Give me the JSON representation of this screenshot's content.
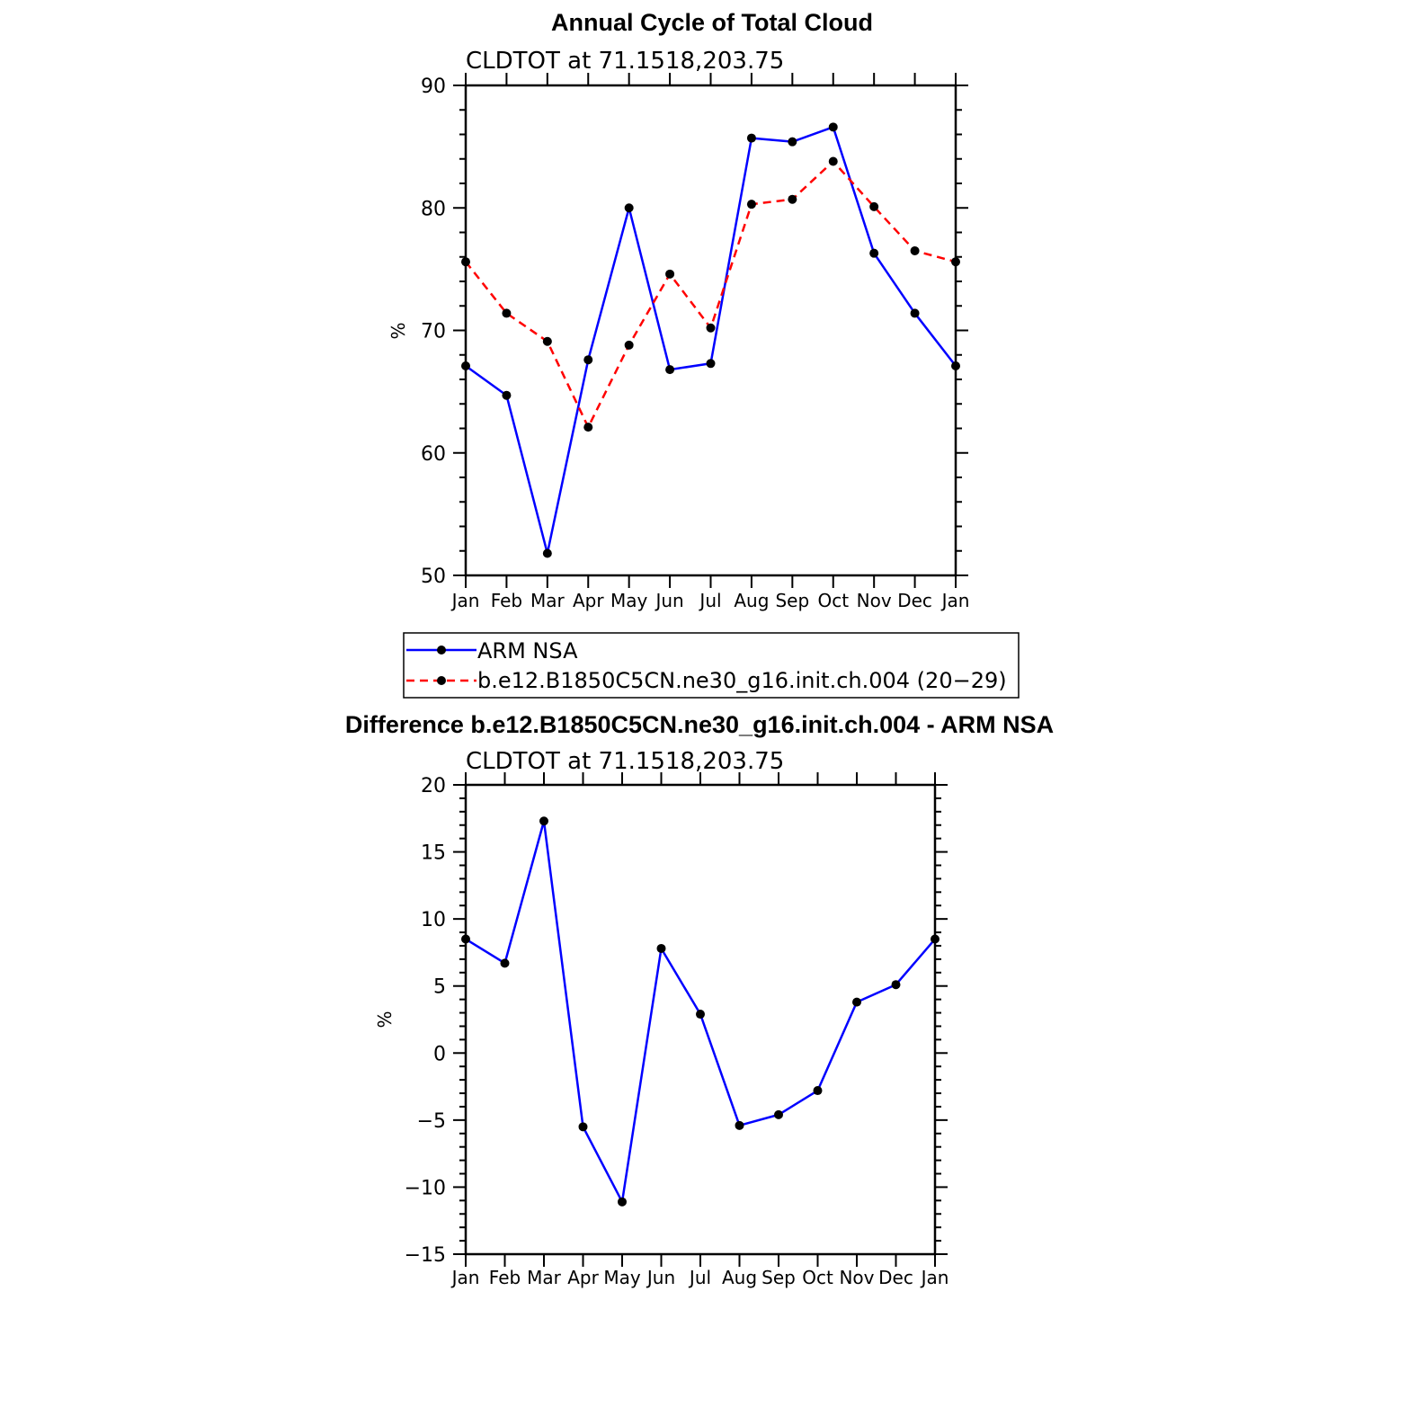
{
  "chart_data": [
    {
      "type": "line",
      "title": "Annual Cycle of Total Cloud",
      "subtitle": "CLDTOT at 71.1518,203.75",
      "ylabel": "%",
      "xlabel": "",
      "ylim": [
        50,
        90
      ],
      "yticks": [
        "50",
        "60",
        "70",
        "80",
        "90"
      ],
      "categories": [
        "Jan",
        "Feb",
        "Mar",
        "Apr",
        "May",
        "Jun",
        "Jul",
        "Aug",
        "Sep",
        "Oct",
        "Nov",
        "Dec",
        "Jan"
      ],
      "grid": false,
      "legend": "below",
      "series": [
        {
          "name": "ARM NSA",
          "color": "#0000ff",
          "dash": "solid",
          "values": [
            67.1,
            64.7,
            51.8,
            67.6,
            80.0,
            66.8,
            67.3,
            85.7,
            85.4,
            86.6,
            76.3,
            71.4,
            67.1
          ]
        },
        {
          "name": "b.e12.B1850C5CN.ne30_g16.init.ch.004 (20−29)",
          "color": "#ff0000",
          "dash": "dashed",
          "values": [
            75.6,
            71.4,
            69.1,
            62.1,
            68.8,
            74.6,
            70.2,
            80.3,
            80.7,
            83.8,
            80.1,
            76.5,
            75.6
          ]
        }
      ]
    },
    {
      "type": "line",
      "title": "Difference b.e12.B1850C5CN.ne30_g16.init.ch.004 - ARM NSA",
      "subtitle": "CLDTOT at 71.1518,203.75",
      "ylabel": "%",
      "xlabel": "",
      "ylim": [
        -15,
        20
      ],
      "yticks": [
        "−15",
        "−10",
        "−5",
        "0",
        "5",
        "10",
        "15",
        "20"
      ],
      "categories": [
        "Jan",
        "Feb",
        "Mar",
        "Apr",
        "May",
        "Jun",
        "Jul",
        "Aug",
        "Sep",
        "Oct",
        "Nov",
        "Dec",
        "Jan"
      ],
      "grid": false,
      "series": [
        {
          "color": "#0000ff",
          "dash": "solid",
          "values": [
            8.5,
            6.7,
            17.3,
            -5.5,
            -11.1,
            7.8,
            2.9,
            -5.4,
            -4.6,
            -2.8,
            3.8,
            5.1,
            8.5
          ]
        }
      ]
    }
  ]
}
